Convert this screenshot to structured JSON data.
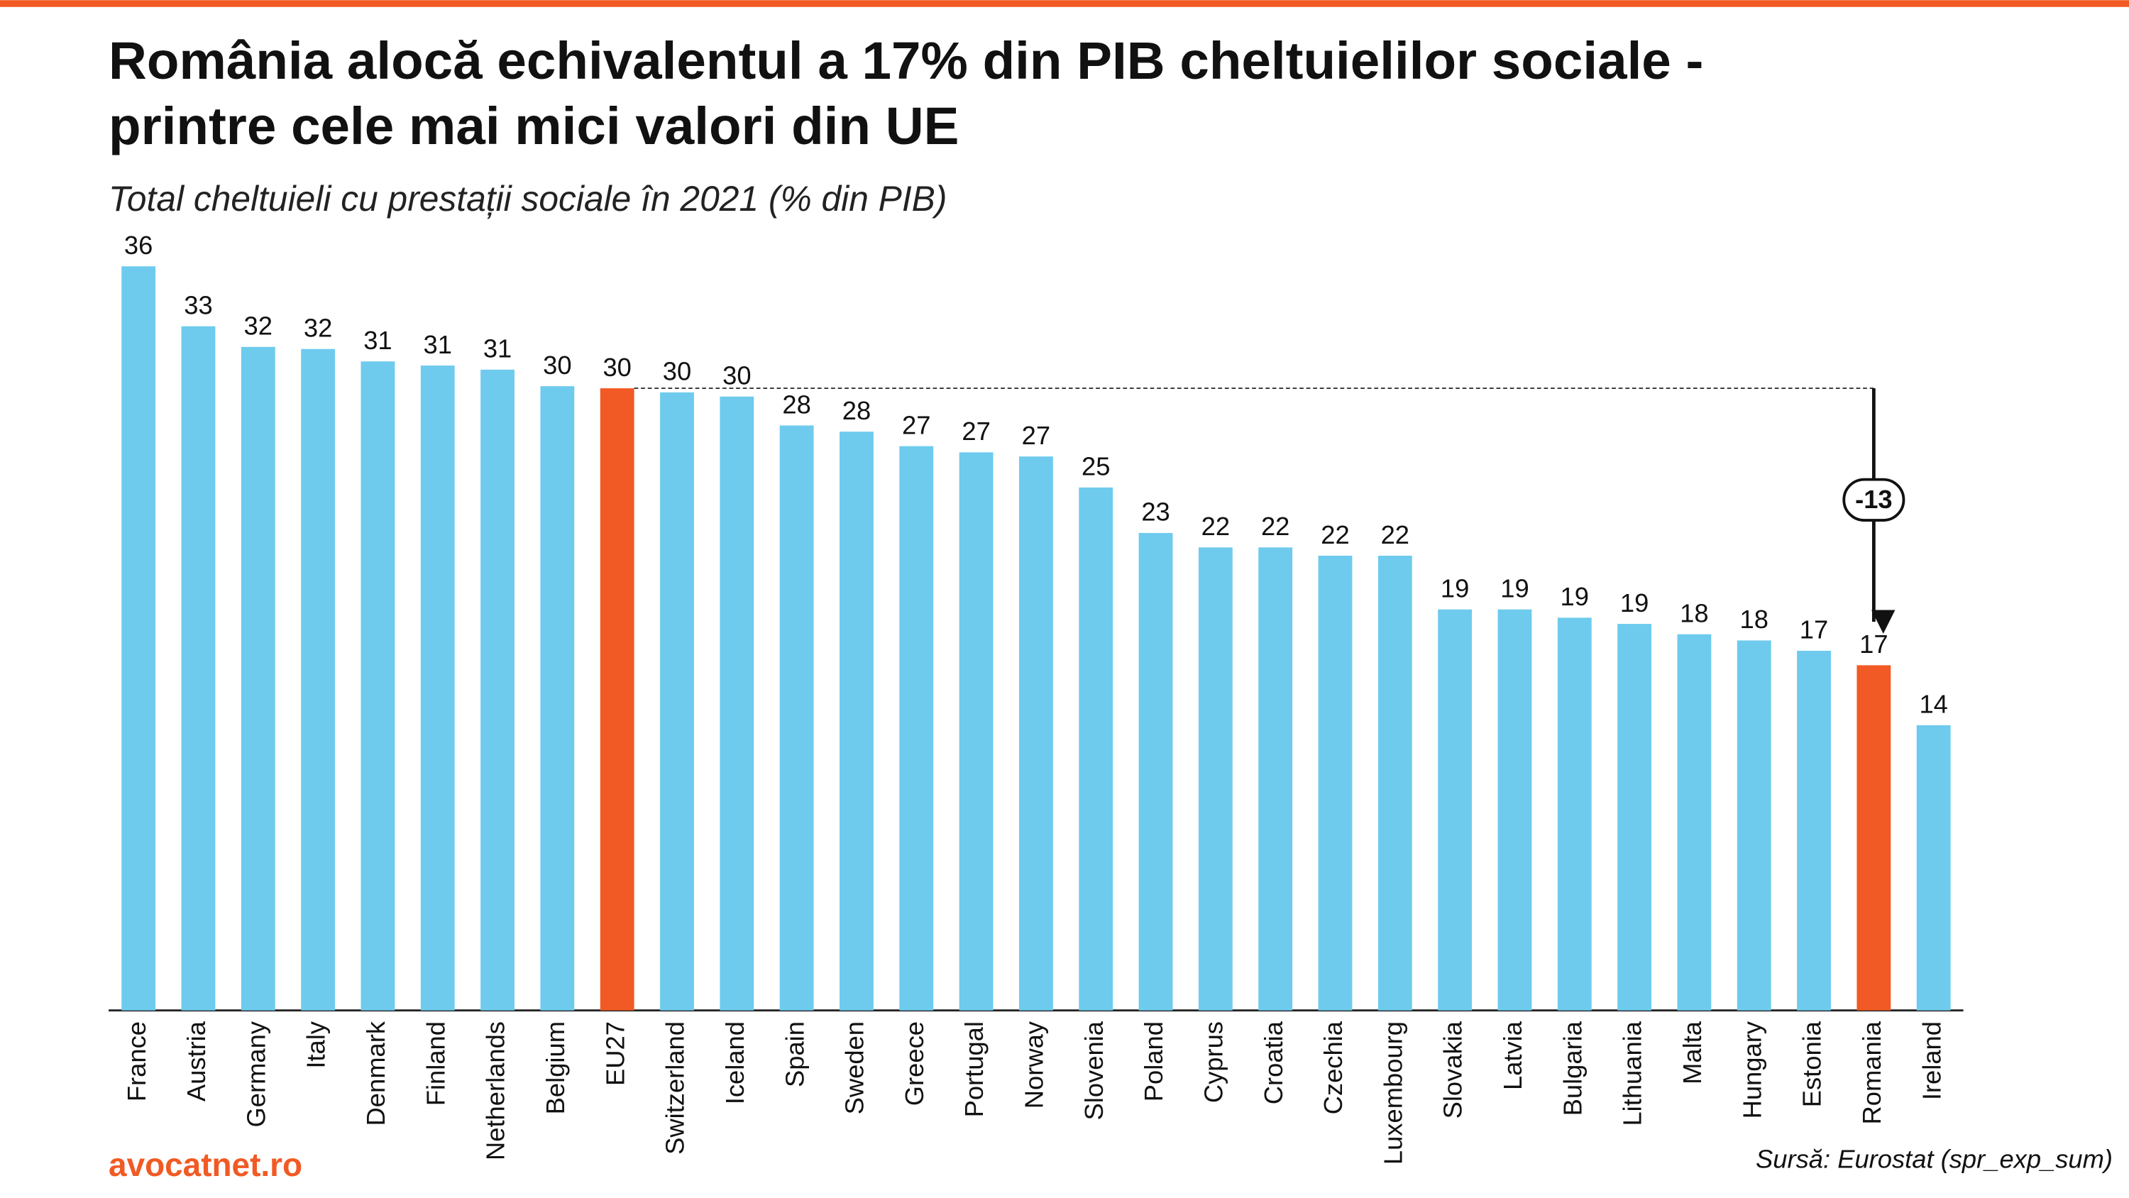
{
  "chart_data": {
    "type": "bar",
    "title": [
      "România alocă echivalentul a 17% din PIB cheltuielilor sociale -",
      "printre cele mai mici valori din UE"
    ],
    "subtitle": "Total cheltuieli cu prestații sociale în 2021 (% din PIB)",
    "categories": [
      "France",
      "Austria",
      "Germany",
      "Italy",
      "Denmark",
      "Finland",
      "Netherlands",
      "Belgium",
      "EU27",
      "Switzerland",
      "Iceland",
      "Spain",
      "Sweden",
      "Greece",
      "Portugal",
      "Norway",
      "Slovenia",
      "Poland",
      "Cyprus",
      "Croatia",
      "Czechia",
      "Luxembourg",
      "Slovakia",
      "Latvia",
      "Bulgaria",
      "Lithuania",
      "Malta",
      "Hungary",
      "Estonia",
      "Romania",
      "Ireland"
    ],
    "values": [
      36.0,
      33.1,
      32.1,
      32.0,
      31.4,
      31.2,
      31.0,
      30.2,
      30.1,
      29.9,
      29.7,
      28.3,
      28.0,
      27.3,
      27.0,
      26.8,
      25.3,
      23.1,
      22.4,
      22.4,
      22.0,
      22.0,
      19.4,
      19.4,
      19.0,
      18.7,
      18.2,
      17.9,
      17.4,
      16.7,
      13.8
    ],
    "value_labels": [
      "36",
      "33",
      "32",
      "32",
      "31",
      "31",
      "31",
      "30",
      "30",
      "30",
      "30",
      "28",
      "28",
      "27",
      "27",
      "27",
      "25",
      "23",
      "22",
      "22",
      "22",
      "22",
      "19",
      "19",
      "19",
      "19",
      "18",
      "18",
      "17",
      "17",
      "14"
    ],
    "colors": [
      "#6ecbed",
      "#6ecbed",
      "#6ecbed",
      "#6ecbed",
      "#6ecbed",
      "#6ecbed",
      "#6ecbed",
      "#6ecbed",
      "#f15a24",
      "#6ecbed",
      "#6ecbed",
      "#6ecbed",
      "#6ecbed",
      "#6ecbed",
      "#6ecbed",
      "#6ecbed",
      "#6ecbed",
      "#6ecbed",
      "#6ecbed",
      "#6ecbed",
      "#6ecbed",
      "#6ecbed",
      "#6ecbed",
      "#6ecbed",
      "#6ecbed",
      "#6ecbed",
      "#6ecbed",
      "#6ecbed",
      "#6ecbed",
      "#f15a24",
      "#6ecbed"
    ],
    "annotation": "-13",
    "brand": "avocatnet.ro",
    "source": "Sursă: Eurostat (spr_exp_sum)"
  }
}
